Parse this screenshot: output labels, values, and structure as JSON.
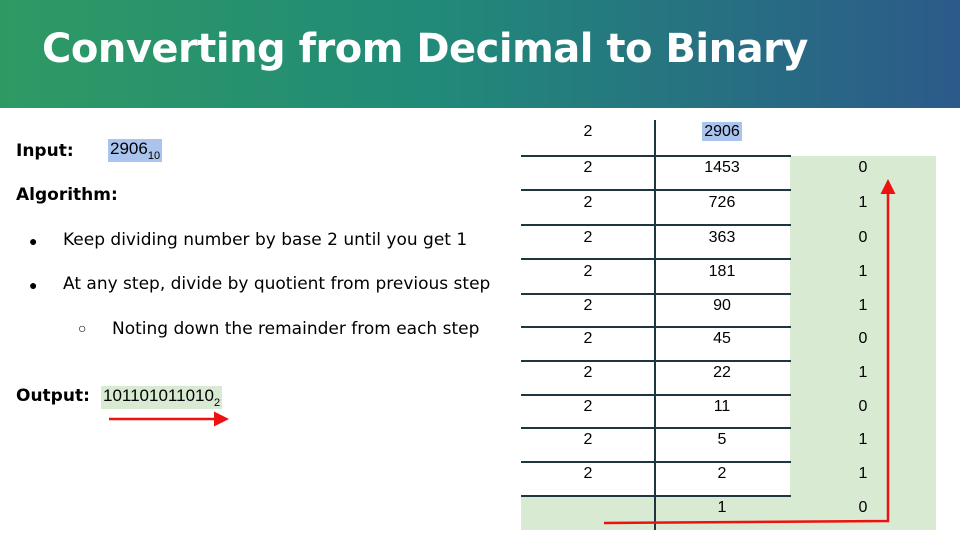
{
  "title": "Converting from Decimal to Binary",
  "input": {
    "label": "Input:",
    "value": "2906",
    "base": "10"
  },
  "algorithm": {
    "label": "Algorithm:",
    "bullets": [
      "Keep dividing number by base 2 until you get 1",
      "At any step, divide by quotient from previous step"
    ],
    "sub_bullet": "Noting down the remainder from each step"
  },
  "output": {
    "label": "Output:",
    "value": "101101011010",
    "base": "2"
  },
  "table": {
    "rows": [
      {
        "divisor": "2",
        "quotient": "2906",
        "remainder": ""
      },
      {
        "divisor": "2",
        "quotient": "1453",
        "remainder": "0"
      },
      {
        "divisor": "2",
        "quotient": "726",
        "remainder": "1"
      },
      {
        "divisor": "2",
        "quotient": "363",
        "remainder": "0"
      },
      {
        "divisor": "2",
        "quotient": "181",
        "remainder": "1"
      },
      {
        "divisor": "2",
        "quotient": "90",
        "remainder": "1"
      },
      {
        "divisor": "2",
        "quotient": "45",
        "remainder": "0"
      },
      {
        "divisor": "2",
        "quotient": "22",
        "remainder": "1"
      },
      {
        "divisor": "2",
        "quotient": "11",
        "remainder": "0"
      },
      {
        "divisor": "2",
        "quotient": "5",
        "remainder": "1"
      },
      {
        "divisor": "2",
        "quotient": "2",
        "remainder": "1"
      },
      {
        "divisor": "",
        "quotient": "1",
        "remainder": "0"
      }
    ]
  },
  "colors": {
    "header_start": "#2e9a63",
    "header_end": "#2c5a8a",
    "highlight_blue": "#aac4ee",
    "highlight_green": "#d9ead3",
    "arrow": "#ee1111"
  }
}
